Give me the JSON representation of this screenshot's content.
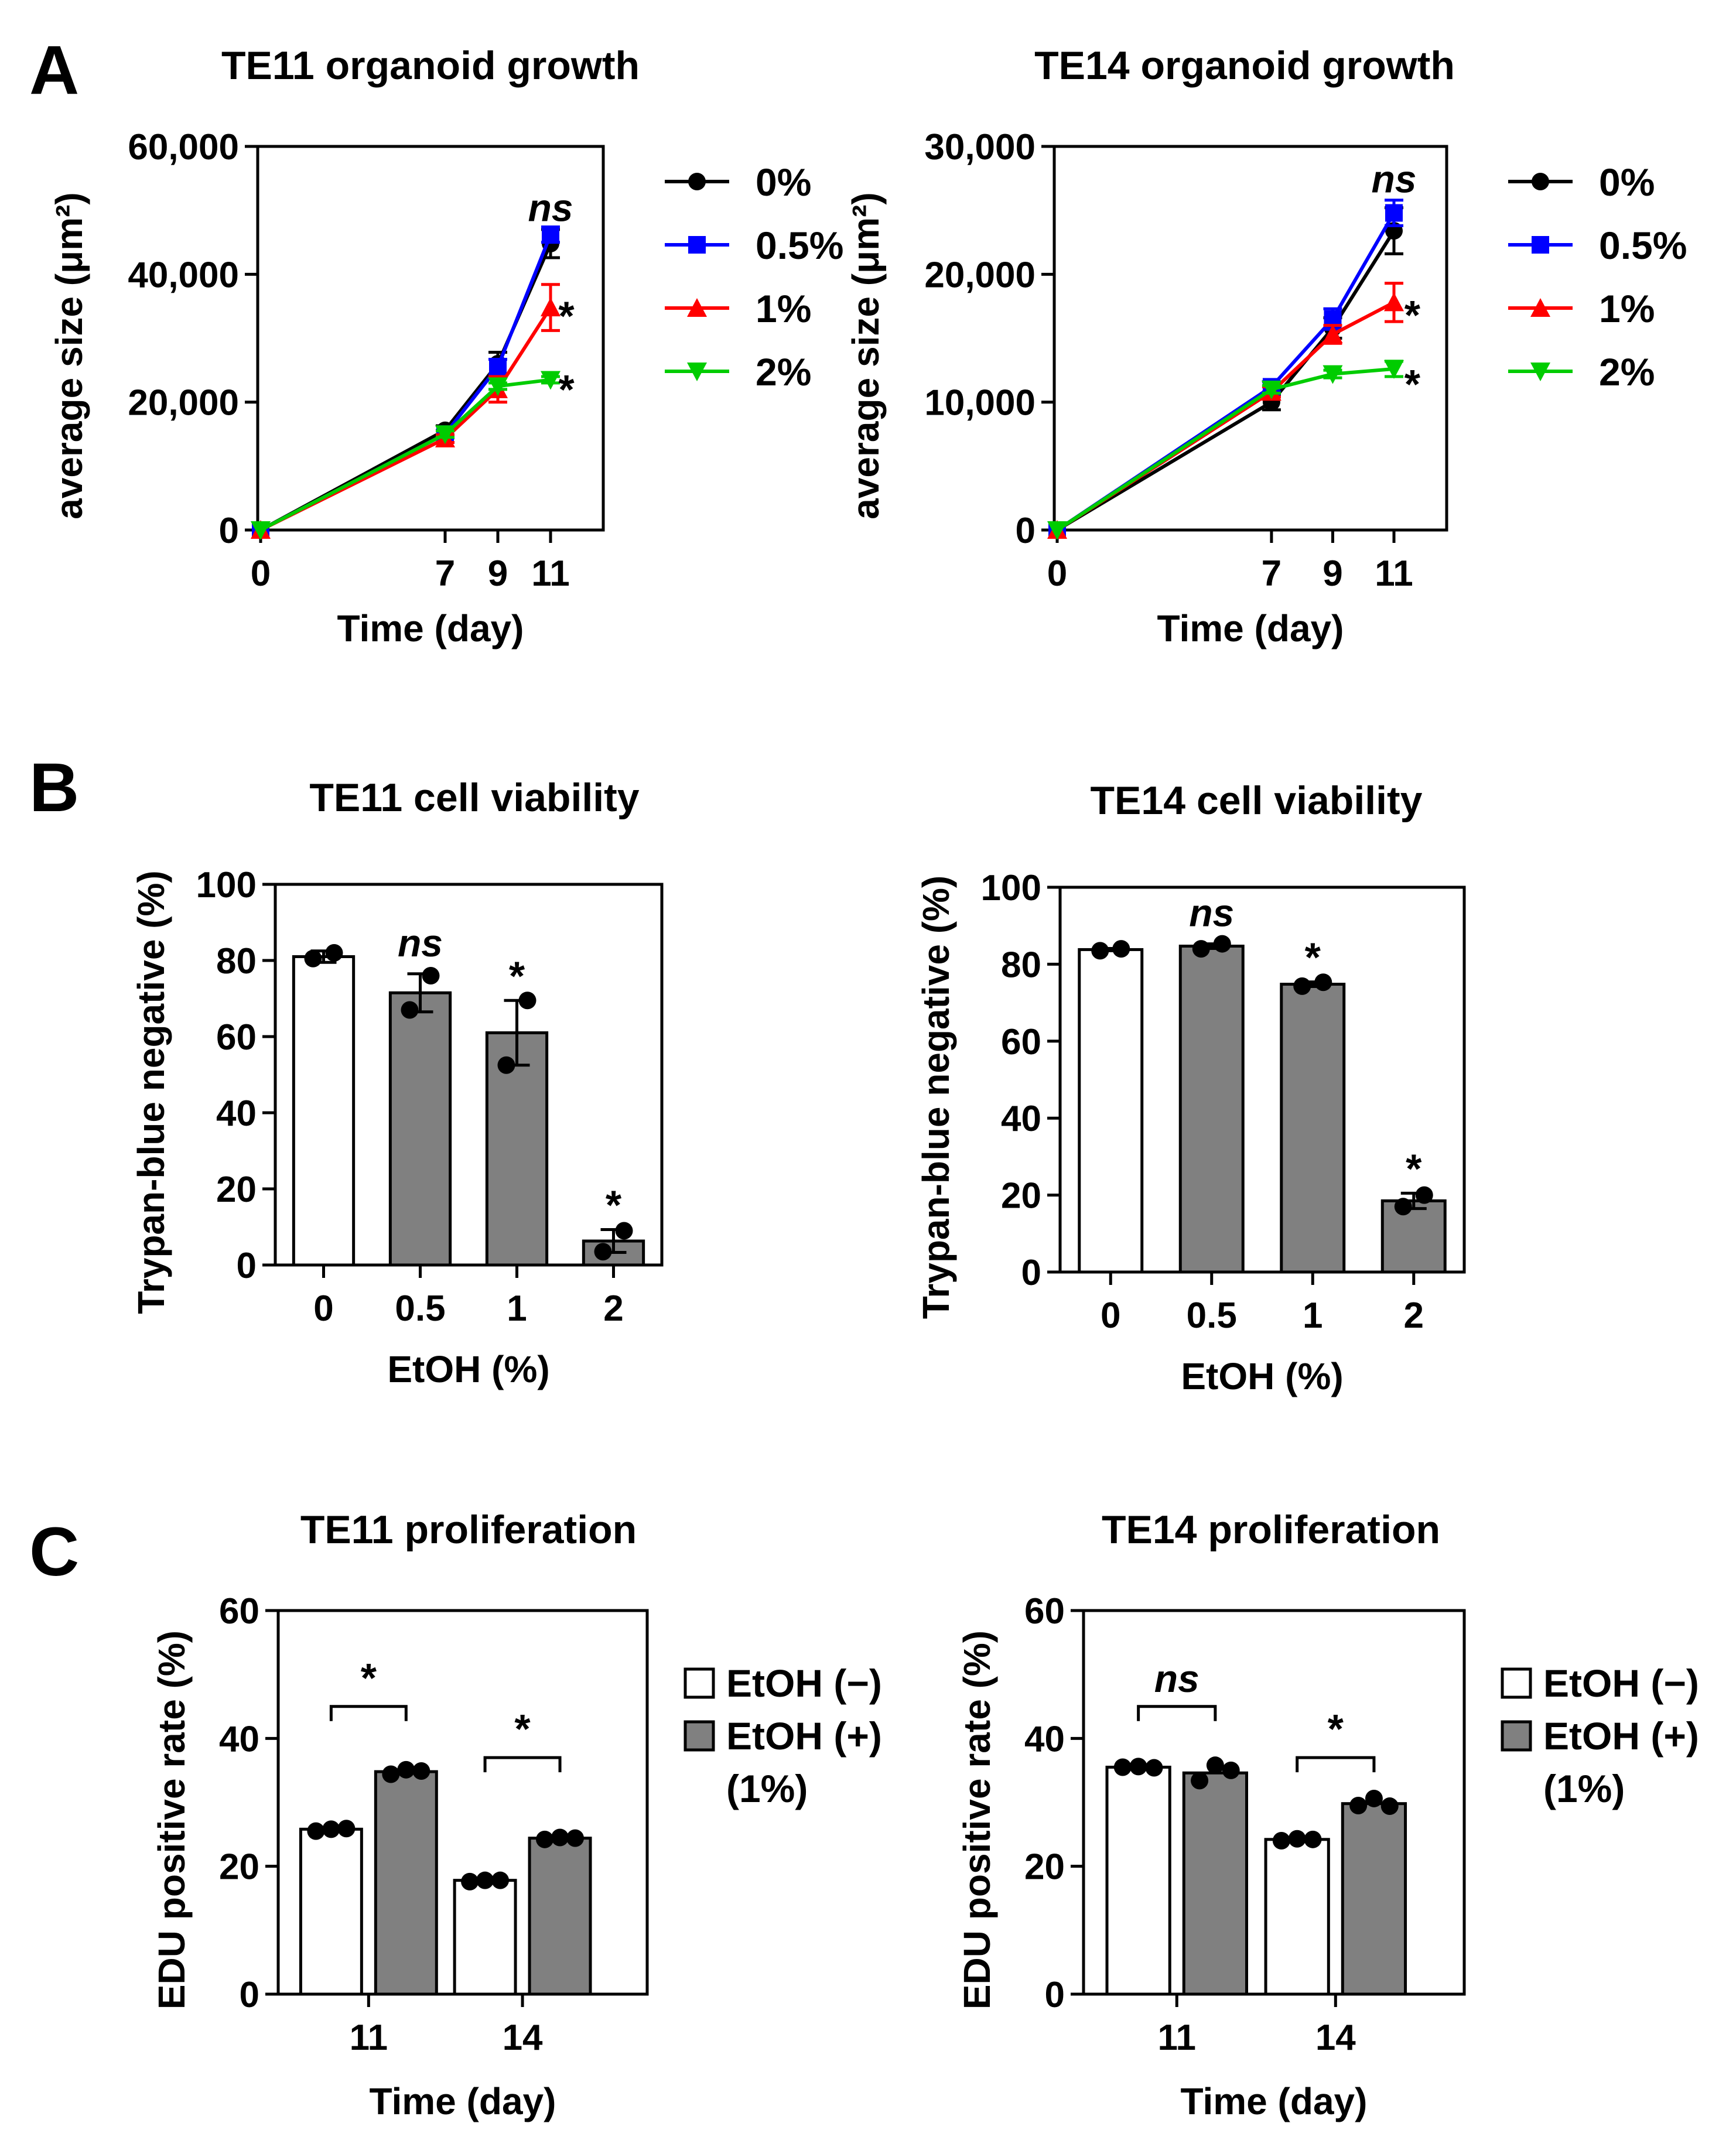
{
  "panels": [
    {
      "id": "A"
    },
    {
      "id": "B"
    },
    {
      "id": "C"
    }
  ],
  "chart_data": [
    {
      "panel": "A",
      "type": "line",
      "title": "TE11 organoid growth",
      "xlabel": "Time (day)",
      "ylabel": "average size (μm²)",
      "x": [
        0,
        7,
        9,
        11
      ],
      "xticks": [
        "0",
        "7",
        "9",
        "11"
      ],
      "ylim": [
        0,
        60000
      ],
      "yticks": [
        "0",
        "20,000",
        "40,000",
        "60,000"
      ],
      "ytick_values": [
        0,
        20000,
        40000,
        60000
      ],
      "series": [
        {
          "name": "0%",
          "color": "#000000",
          "marker": "circle",
          "values": [
            0,
            15600,
            26000,
            44800
          ],
          "errors": [
            0,
            700,
            1800,
            2200
          ]
        },
        {
          "name": "0.5%",
          "color": "#0000ff",
          "marker": "square",
          "values": [
            0,
            15000,
            25500,
            46200
          ],
          "errors": [
            0,
            600,
            1200,
            1200
          ]
        },
        {
          "name": "1%",
          "color": "#ff0000",
          "marker": "triangle-up",
          "values": [
            0,
            14300,
            22000,
            34800
          ],
          "errors": [
            0,
            600,
            2000,
            3600
          ]
        },
        {
          "name": "2%",
          "color": "#00cc00",
          "marker": "triangle-down",
          "values": [
            0,
            15000,
            22500,
            23500
          ],
          "errors": [
            0,
            500,
            500,
            500
          ]
        }
      ],
      "annotations": [
        {
          "text": "ns",
          "x": 11,
          "y": 50500,
          "style": "italic"
        },
        {
          "text": "*",
          "x": 11.6,
          "y": 33500
        },
        {
          "text": "*",
          "x": 11.6,
          "y": 22000
        }
      ]
    },
    {
      "panel": "A",
      "type": "line",
      "title": "TE14 organoid growth",
      "xlabel": "Time (day)",
      "ylabel": "average size (μm²)",
      "x": [
        0,
        7,
        9,
        11
      ],
      "xticks": [
        "0",
        "7",
        "9",
        "11"
      ],
      "ylim": [
        0,
        30000
      ],
      "yticks": [
        "0",
        "10,000",
        "20,000",
        "30,000"
      ],
      "ytick_values": [
        0,
        10000,
        20000,
        30000
      ],
      "series": [
        {
          "name": "0%",
          "color": "#000000",
          "marker": "circle",
          "values": [
            0,
            10000,
            15800,
            23400
          ],
          "errors": [
            0,
            600,
            800,
            1800
          ]
        },
        {
          "name": "0.5%",
          "color": "#0000ff",
          "marker": "square",
          "values": [
            0,
            11200,
            16500,
            24800
          ],
          "errors": [
            0,
            400,
            800,
            1000
          ]
        },
        {
          "name": "1%",
          "color": "#ff0000",
          "marker": "triangle-up",
          "values": [
            0,
            10800,
            15300,
            17800
          ],
          "errors": [
            0,
            400,
            700,
            1500
          ]
        },
        {
          "name": "2%",
          "color": "#00cc00",
          "marker": "triangle-down",
          "values": [
            0,
            11000,
            12200,
            12600
          ],
          "errors": [
            0,
            300,
            300,
            600
          ]
        }
      ],
      "annotations": [
        {
          "text": "ns",
          "x": 11,
          "y": 27500,
          "style": "italic"
        },
        {
          "text": "*",
          "x": 11.6,
          "y": 16800
        },
        {
          "text": "*",
          "x": 11.6,
          "y": 11400
        }
      ]
    },
    {
      "panel": "B",
      "type": "bar",
      "title": "TE11 cell viability",
      "xlabel": "EtOH (%)",
      "ylabel": "Trypan-blue negative (%)",
      "categories": [
        "0",
        "0.5",
        "1",
        "2"
      ],
      "ylim": [
        0,
        100
      ],
      "yticks": [
        "0",
        "20",
        "40",
        "60",
        "80",
        "100"
      ],
      "ytick_values": [
        0,
        20,
        40,
        60,
        80,
        100
      ],
      "values": [
        81,
        71.5,
        61,
        6.3
      ],
      "errors": [
        1.5,
        5,
        8.5,
        3
      ],
      "points": [
        [
          80.5,
          82
        ],
        [
          67,
          76
        ],
        [
          52.5,
          69.5
        ],
        [
          3.5,
          9
        ]
      ],
      "fills": [
        "#ffffff",
        "#808080",
        "#808080",
        "#808080"
      ],
      "annotations": [
        {
          "index": 1,
          "text": "ns",
          "style": "italic"
        },
        {
          "index": 2,
          "text": "*"
        },
        {
          "index": 3,
          "text": "*"
        }
      ]
    },
    {
      "panel": "B",
      "type": "bar",
      "title": "TE14 cell viability",
      "xlabel": "EtOH (%)",
      "ylabel": "Trypan-blue negative (%)",
      "categories": [
        "0",
        "0.5",
        "1",
        "2"
      ],
      "ylim": [
        0,
        100
      ],
      "yticks": [
        "0",
        "20",
        "40",
        "60",
        "80",
        "100"
      ],
      "ytick_values": [
        0,
        20,
        40,
        60,
        80,
        100
      ],
      "values": [
        83.8,
        84.7,
        74.8,
        18.5
      ],
      "errors": [
        0.3,
        0.6,
        0.6,
        2
      ],
      "points": [
        [
          83.5,
          84
        ],
        [
          84,
          85.3
        ],
        [
          74.3,
          75.3
        ],
        [
          17,
          20
        ]
      ],
      "fills": [
        "#ffffff",
        "#808080",
        "#808080",
        "#808080"
      ],
      "annotations": [
        {
          "index": 1,
          "text": "ns",
          "style": "italic"
        },
        {
          "index": 2,
          "text": "*"
        },
        {
          "index": 3,
          "text": "*"
        }
      ]
    },
    {
      "panel": "C",
      "type": "bar",
      "title": "TE11 proliferation",
      "xlabel": "Time (day)",
      "ylabel": "EDU positive rate (%)",
      "categories": [
        "11",
        "14"
      ],
      "ylim": [
        0,
        60
      ],
      "yticks": [
        "0",
        "20",
        "40",
        "60"
      ],
      "ytick_values": [
        0,
        20,
        40,
        60
      ],
      "series": [
        {
          "name": "EtOH (−)",
          "color": "#ffffff",
          "values": [
            25.8,
            17.8
          ],
          "points": [
            [
              25.5,
              25.8,
              25.9
            ],
            [
              17.6,
              17.8,
              17.8
            ]
          ]
        },
        {
          "name": "EtOH (+)\n(1%)",
          "color": "#808080",
          "values": [
            34.8,
            24.4
          ],
          "points": [
            [
              34.4,
              35.1,
              34.9
            ],
            [
              24.2,
              24.5,
              24.4
            ]
          ]
        }
      ],
      "legend": [
        "EtOH (−)",
        "EtOH (+)",
        "(1%)"
      ],
      "annotations": [
        {
          "index": 0,
          "text": "*",
          "y": 45
        },
        {
          "index": 1,
          "text": "*",
          "y": 37
        }
      ]
    },
    {
      "panel": "C",
      "type": "bar",
      "title": "TE14 proliferation",
      "xlabel": "Time (day)",
      "ylabel": "EDU positive rate (%)",
      "categories": [
        "11",
        "14"
      ],
      "ylim": [
        0,
        60
      ],
      "yticks": [
        "0",
        "20",
        "40",
        "60"
      ],
      "ytick_values": [
        0,
        20,
        40,
        60
      ],
      "series": [
        {
          "name": "EtOH (−)",
          "color": "#ffffff",
          "values": [
            35.5,
            24.2
          ],
          "points": [
            [
              35.5,
              35.6,
              35.4
            ],
            [
              24.0,
              24.3,
              24.2
            ]
          ]
        },
        {
          "name": "EtOH (+)\n(1%)",
          "color": "#808080",
          "values": [
            34.6,
            29.8
          ],
          "points": [
            [
              33.4,
              35.8,
              35.0
            ],
            [
              29.5,
              30.6,
              29.4
            ]
          ]
        }
      ],
      "legend": [
        "EtOH (−)",
        "EtOH (+)",
        "(1%)"
      ],
      "annotations": [
        {
          "index": 0,
          "text": "ns",
          "style": "italic",
          "y": 45
        },
        {
          "index": 1,
          "text": "*",
          "y": 37
        }
      ]
    }
  ]
}
